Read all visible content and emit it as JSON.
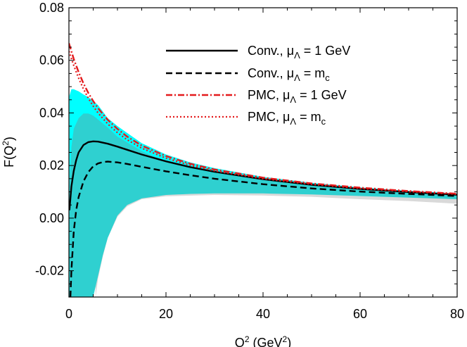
{
  "chart_data": {
    "type": "line",
    "xlabel": "Q",
    "xlabel_sup": "2",
    "xlabel_unit": " (GeV",
    "xlabel_unit_sup": "2",
    "xlabel_unit_close": ")",
    "ylabel": "F(Q",
    "ylabel_sup": "2",
    "ylabel_close": ")",
    "xlim": [
      0,
      80
    ],
    "ylim": [
      -0.03,
      0.08
    ],
    "xticks": [
      0,
      20,
      40,
      60,
      80
    ],
    "xtick_labels": [
      "0",
      "20",
      "40",
      "60",
      "80"
    ],
    "yticks": [
      -0.02,
      0.0,
      0.02,
      0.04,
      0.06,
      0.08
    ],
    "ytick_labels": [
      "-0.02",
      "0.00",
      "0.02",
      "0.04",
      "0.06",
      "0.08"
    ],
    "grid": false,
    "legend_placement": "top-right",
    "colors": {
      "conv_line": "#000000",
      "pmc_line": "#e41a1c",
      "band_pmc": "#00ffff",
      "band_conv": "#2fd0d0",
      "band_gray": "#d9d9d9"
    },
    "series": [
      {
        "name": "Conv., μ",
        "name_sub": "Λ",
        "name_rest": " = 1 GeV",
        "style": "solid",
        "x": [
          0.1,
          0.5,
          1,
          1.5,
          2,
          3,
          4,
          5,
          6,
          8,
          10,
          12,
          15,
          20,
          25,
          30,
          40,
          50,
          60,
          70,
          80
        ],
        "y": [
          0.003,
          0.012,
          0.018,
          0.022,
          0.025,
          0.0278,
          0.0289,
          0.0292,
          0.0291,
          0.0283,
          0.0272,
          0.026,
          0.0242,
          0.0216,
          0.0194,
          0.0176,
          0.0148,
          0.0127,
          0.0111,
          0.0099,
          0.0089
        ]
      },
      {
        "name": "Conv., μ",
        "name_sub": "Λ",
        "name_rest": " = m",
        "name_rest_sub": "c",
        "style": "dashed",
        "x": [
          0.3,
          0.5,
          1,
          1.5,
          2,
          3,
          4,
          5,
          6,
          7,
          8,
          10,
          12,
          15,
          20,
          25,
          30,
          40,
          50,
          60,
          70,
          80
        ],
        "y": [
          -0.03,
          -0.02,
          -0.005,
          0.003,
          0.008,
          0.014,
          0.0175,
          0.0197,
          0.0208,
          0.0213,
          0.0215,
          0.0212,
          0.0206,
          0.0195,
          0.0178,
          0.0163,
          0.015,
          0.0129,
          0.0113,
          0.0101,
          0.0092,
          0.0084
        ]
      },
      {
        "name": "PMC, μ",
        "name_sub": "Λ",
        "name_rest": " = 1 GeV",
        "style": "dashdot",
        "x": [
          0,
          1,
          2,
          3,
          4,
          5,
          6,
          8,
          10,
          12,
          15,
          20,
          25,
          30,
          40,
          50,
          60,
          70,
          80
        ],
        "y": [
          0.0665,
          0.0605,
          0.0555,
          0.0512,
          0.0476,
          0.0445,
          0.0418,
          0.0374,
          0.0339,
          0.031,
          0.0276,
          0.0236,
          0.0207,
          0.0185,
          0.0154,
          0.0132,
          0.0116,
          0.0103,
          0.0093
        ]
      },
      {
        "name": "PMC, μ",
        "name_sub": "Λ",
        "name_rest": " = m",
        "name_rest_sub": "c",
        "style": "dotted",
        "x": [
          0,
          1,
          2,
          3,
          4,
          5,
          6,
          8,
          10,
          12,
          15,
          20,
          25,
          30,
          40,
          50,
          60,
          70,
          80
        ],
        "y": [
          0.0635,
          0.058,
          0.0532,
          0.0491,
          0.0456,
          0.0426,
          0.04,
          0.0358,
          0.0325,
          0.0298,
          0.0266,
          0.0228,
          0.0201,
          0.018,
          0.015,
          0.0129,
          0.0113,
          0.0101,
          0.0091
        ]
      }
    ],
    "bands": [
      {
        "color_key": "band_gray",
        "upper": [
          [
            5.5,
            0.041
          ],
          [
            8,
            0.0345
          ],
          [
            10,
            0.0305
          ],
          [
            15,
            0.0245
          ],
          [
            20,
            0.02
          ],
          [
            25,
            0.0172
          ],
          [
            30,
            0.0155
          ],
          [
            40,
            0.0132
          ],
          [
            50,
            0.0116
          ],
          [
            60,
            0.0105
          ],
          [
            70,
            0.0096
          ],
          [
            80,
            0.0089
          ]
        ],
        "lower": [
          [
            80,
            0.0055
          ],
          [
            70,
            0.0065
          ],
          [
            60,
            0.0072
          ],
          [
            50,
            0.0081
          ],
          [
            40,
            0.0086
          ],
          [
            30,
            0.0088
          ],
          [
            20,
            0.0083
          ],
          [
            15,
            0.0072
          ],
          [
            12,
            0.0045
          ],
          [
            10,
            0.0005
          ],
          [
            8,
            -0.0075
          ],
          [
            7,
            -0.0145
          ],
          [
            6,
            -0.023
          ],
          [
            5.5,
            -0.03
          ]
        ]
      },
      {
        "color_key": "band_pmc",
        "upper": [
          [
            0.1,
            0.0465
          ],
          [
            0.5,
            0.049
          ],
          [
            1,
            0.049
          ],
          [
            2,
            0.0482
          ],
          [
            3,
            0.047
          ],
          [
            4,
            0.046
          ],
          [
            5,
            0.0445
          ],
          [
            6,
            0.043
          ],
          [
            8,
            0.038
          ],
          [
            10,
            0.035
          ],
          [
            15,
            0.0285
          ],
          [
            20,
            0.0242
          ],
          [
            25,
            0.0212
          ],
          [
            30,
            0.019
          ],
          [
            40,
            0.0157
          ],
          [
            50,
            0.0134
          ],
          [
            60,
            0.0117
          ],
          [
            70,
            0.0104
          ],
          [
            80,
            0.0094
          ]
        ],
        "lower": [
          [
            80,
            0.0082
          ],
          [
            70,
            0.009
          ],
          [
            60,
            0.01
          ],
          [
            50,
            0.0113
          ],
          [
            40,
            0.0131
          ],
          [
            30,
            0.0152
          ],
          [
            20,
            0.0182
          ],
          [
            15,
            0.0206
          ],
          [
            10,
            0.0238
          ],
          [
            8,
            0.025
          ],
          [
            6,
            0.026
          ],
          [
            5,
            0.0265
          ],
          [
            4,
            0.0268
          ],
          [
            3,
            0.0265
          ],
          [
            2,
            0.025
          ],
          [
            1,
            0.02
          ],
          [
            0.1,
            0.005
          ]
        ]
      },
      {
        "color_key": "band_conv",
        "upper": [
          [
            0.05,
            -0.03
          ],
          [
            0.1,
            0.012
          ],
          [
            0.5,
            0.027
          ],
          [
            1,
            0.034
          ],
          [
            2,
            0.038
          ],
          [
            3,
            0.0398
          ],
          [
            4,
            0.0398
          ],
          [
            5,
            0.039
          ],
          [
            6,
            0.0375
          ],
          [
            8,
            0.0345
          ],
          [
            10,
            0.031
          ],
          [
            15,
            0.0255
          ],
          [
            20,
            0.0215
          ],
          [
            25,
            0.019
          ],
          [
            30,
            0.0172
          ],
          [
            40,
            0.0145
          ],
          [
            50,
            0.0125
          ],
          [
            60,
            0.011
          ],
          [
            70,
            0.0098
          ],
          [
            80,
            0.0088
          ]
        ],
        "lower": [
          [
            80,
            0.0072
          ],
          [
            70,
            0.0078
          ],
          [
            60,
            0.0084
          ],
          [
            50,
            0.009
          ],
          [
            40,
            0.0094
          ],
          [
            30,
            0.0094
          ],
          [
            25,
            0.0092
          ],
          [
            20,
            0.0088
          ],
          [
            15,
            0.0075
          ],
          [
            12,
            0.005
          ],
          [
            10,
            0.001
          ],
          [
            8,
            -0.0075
          ],
          [
            7,
            -0.014
          ],
          [
            6,
            -0.022
          ],
          [
            5.5,
            -0.026
          ],
          [
            5,
            -0.03
          ]
        ]
      }
    ]
  }
}
